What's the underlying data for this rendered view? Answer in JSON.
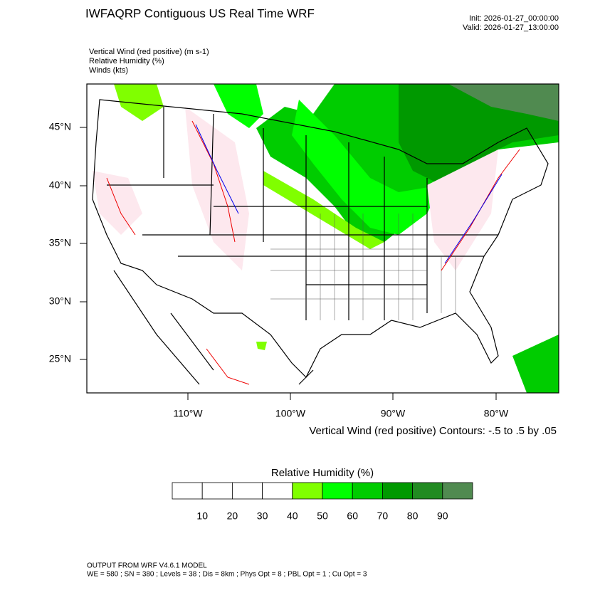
{
  "header": {
    "title": "IWFAQRP Contiguous US Real Time WRF",
    "init": "Init: 2026-01-27_00:00:00",
    "valid": "Valid: 2026-01-27_13:00:00"
  },
  "fields": [
    "Vertical Wind (red positive)   (m s-1)",
    "Relative Humidity   (%)",
    "Winds   (kts)"
  ],
  "map": {
    "lat_labels": [
      "45°N",
      "40°N",
      "35°N",
      "30°N",
      "25°N"
    ],
    "lon_labels": [
      "110°W",
      "100°W",
      "90°W",
      "80°W"
    ],
    "contour_note": "Vertical Wind (red positive) Contours: -.5 to .5 by .05"
  },
  "colorbar": {
    "title": "Relative Humidity  (%)",
    "levels": [
      10,
      20,
      30,
      40,
      50,
      60,
      70,
      80,
      90
    ],
    "colors": [
      "#ffffff",
      "#ffffff",
      "#ffffff",
      "#ffffff",
      "#80ff00",
      "#00ff00",
      "#00cc00",
      "#009900",
      "#228b22",
      "#508a50"
    ]
  },
  "footer": [
    "OUTPUT FROM WRF V4.6.1 MODEL",
    "WE = 580 ; SN = 380 ; Levels = 38 ; Dis = 8km ; Phys Opt = 8 ; PBL Opt = 1 ; Cu Opt = 3"
  ]
}
